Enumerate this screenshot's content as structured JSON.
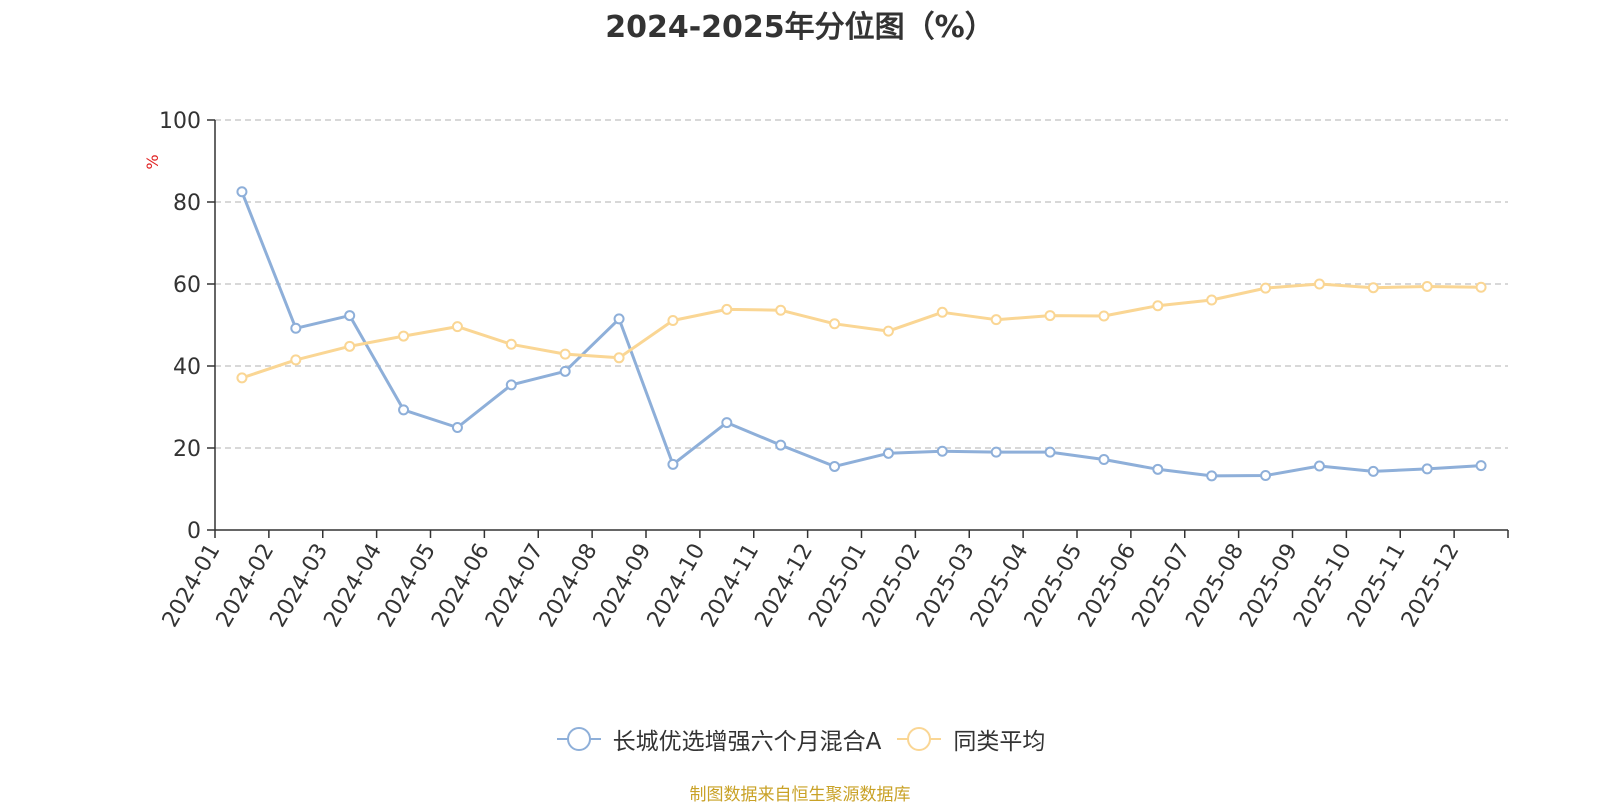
{
  "chart_data": {
    "type": "line",
    "title": "2024-2025年分位图（%）",
    "ylabel": "%",
    "xlabel": "",
    "ylim": [
      0,
      100
    ],
    "yticks": [
      0,
      20,
      40,
      60,
      80,
      100
    ],
    "grid": true,
    "legend_position": "bottom",
    "categories": [
      "2024-01",
      "2024-02",
      "2024-03",
      "2024-04",
      "2024-05",
      "2024-06",
      "2024-07",
      "2024-08",
      "2024-09",
      "2024-10",
      "2024-11",
      "2024-12",
      "2025-01",
      "2025-02",
      "2025-03",
      "2025-04",
      "2025-05",
      "2025-06",
      "2025-07",
      "2025-08",
      "2025-09",
      "2025-10",
      "2025-11",
      "2025-12"
    ],
    "series": [
      {
        "name": "长城优选增强六个月混合A",
        "color": "#8eafd9",
        "values": [
          82.5,
          49.2,
          52.3,
          29.3,
          25.0,
          35.4,
          38.7,
          51.5,
          16.0,
          26.2,
          20.7,
          15.5,
          18.7,
          19.2,
          19.0,
          19.0,
          17.2,
          14.8,
          13.2,
          13.3,
          15.6,
          14.3,
          14.9,
          15.7
        ]
      },
      {
        "name": "同类平均",
        "color": "#fad694",
        "values": [
          37.1,
          41.5,
          44.8,
          47.3,
          49.6,
          45.3,
          42.9,
          42.0,
          51.1,
          53.8,
          53.6,
          50.3,
          48.5,
          53.1,
          51.3,
          52.3,
          52.2,
          54.7,
          56.1,
          59.0,
          60.0,
          59.1,
          59.4,
          59.2
        ]
      }
    ]
  },
  "source": "制图数据来自恒生聚源数据库",
  "colors": {
    "axis": "#333333",
    "grid": "#cccccc",
    "ylabel": "#e02020",
    "source": "#c9a227"
  }
}
